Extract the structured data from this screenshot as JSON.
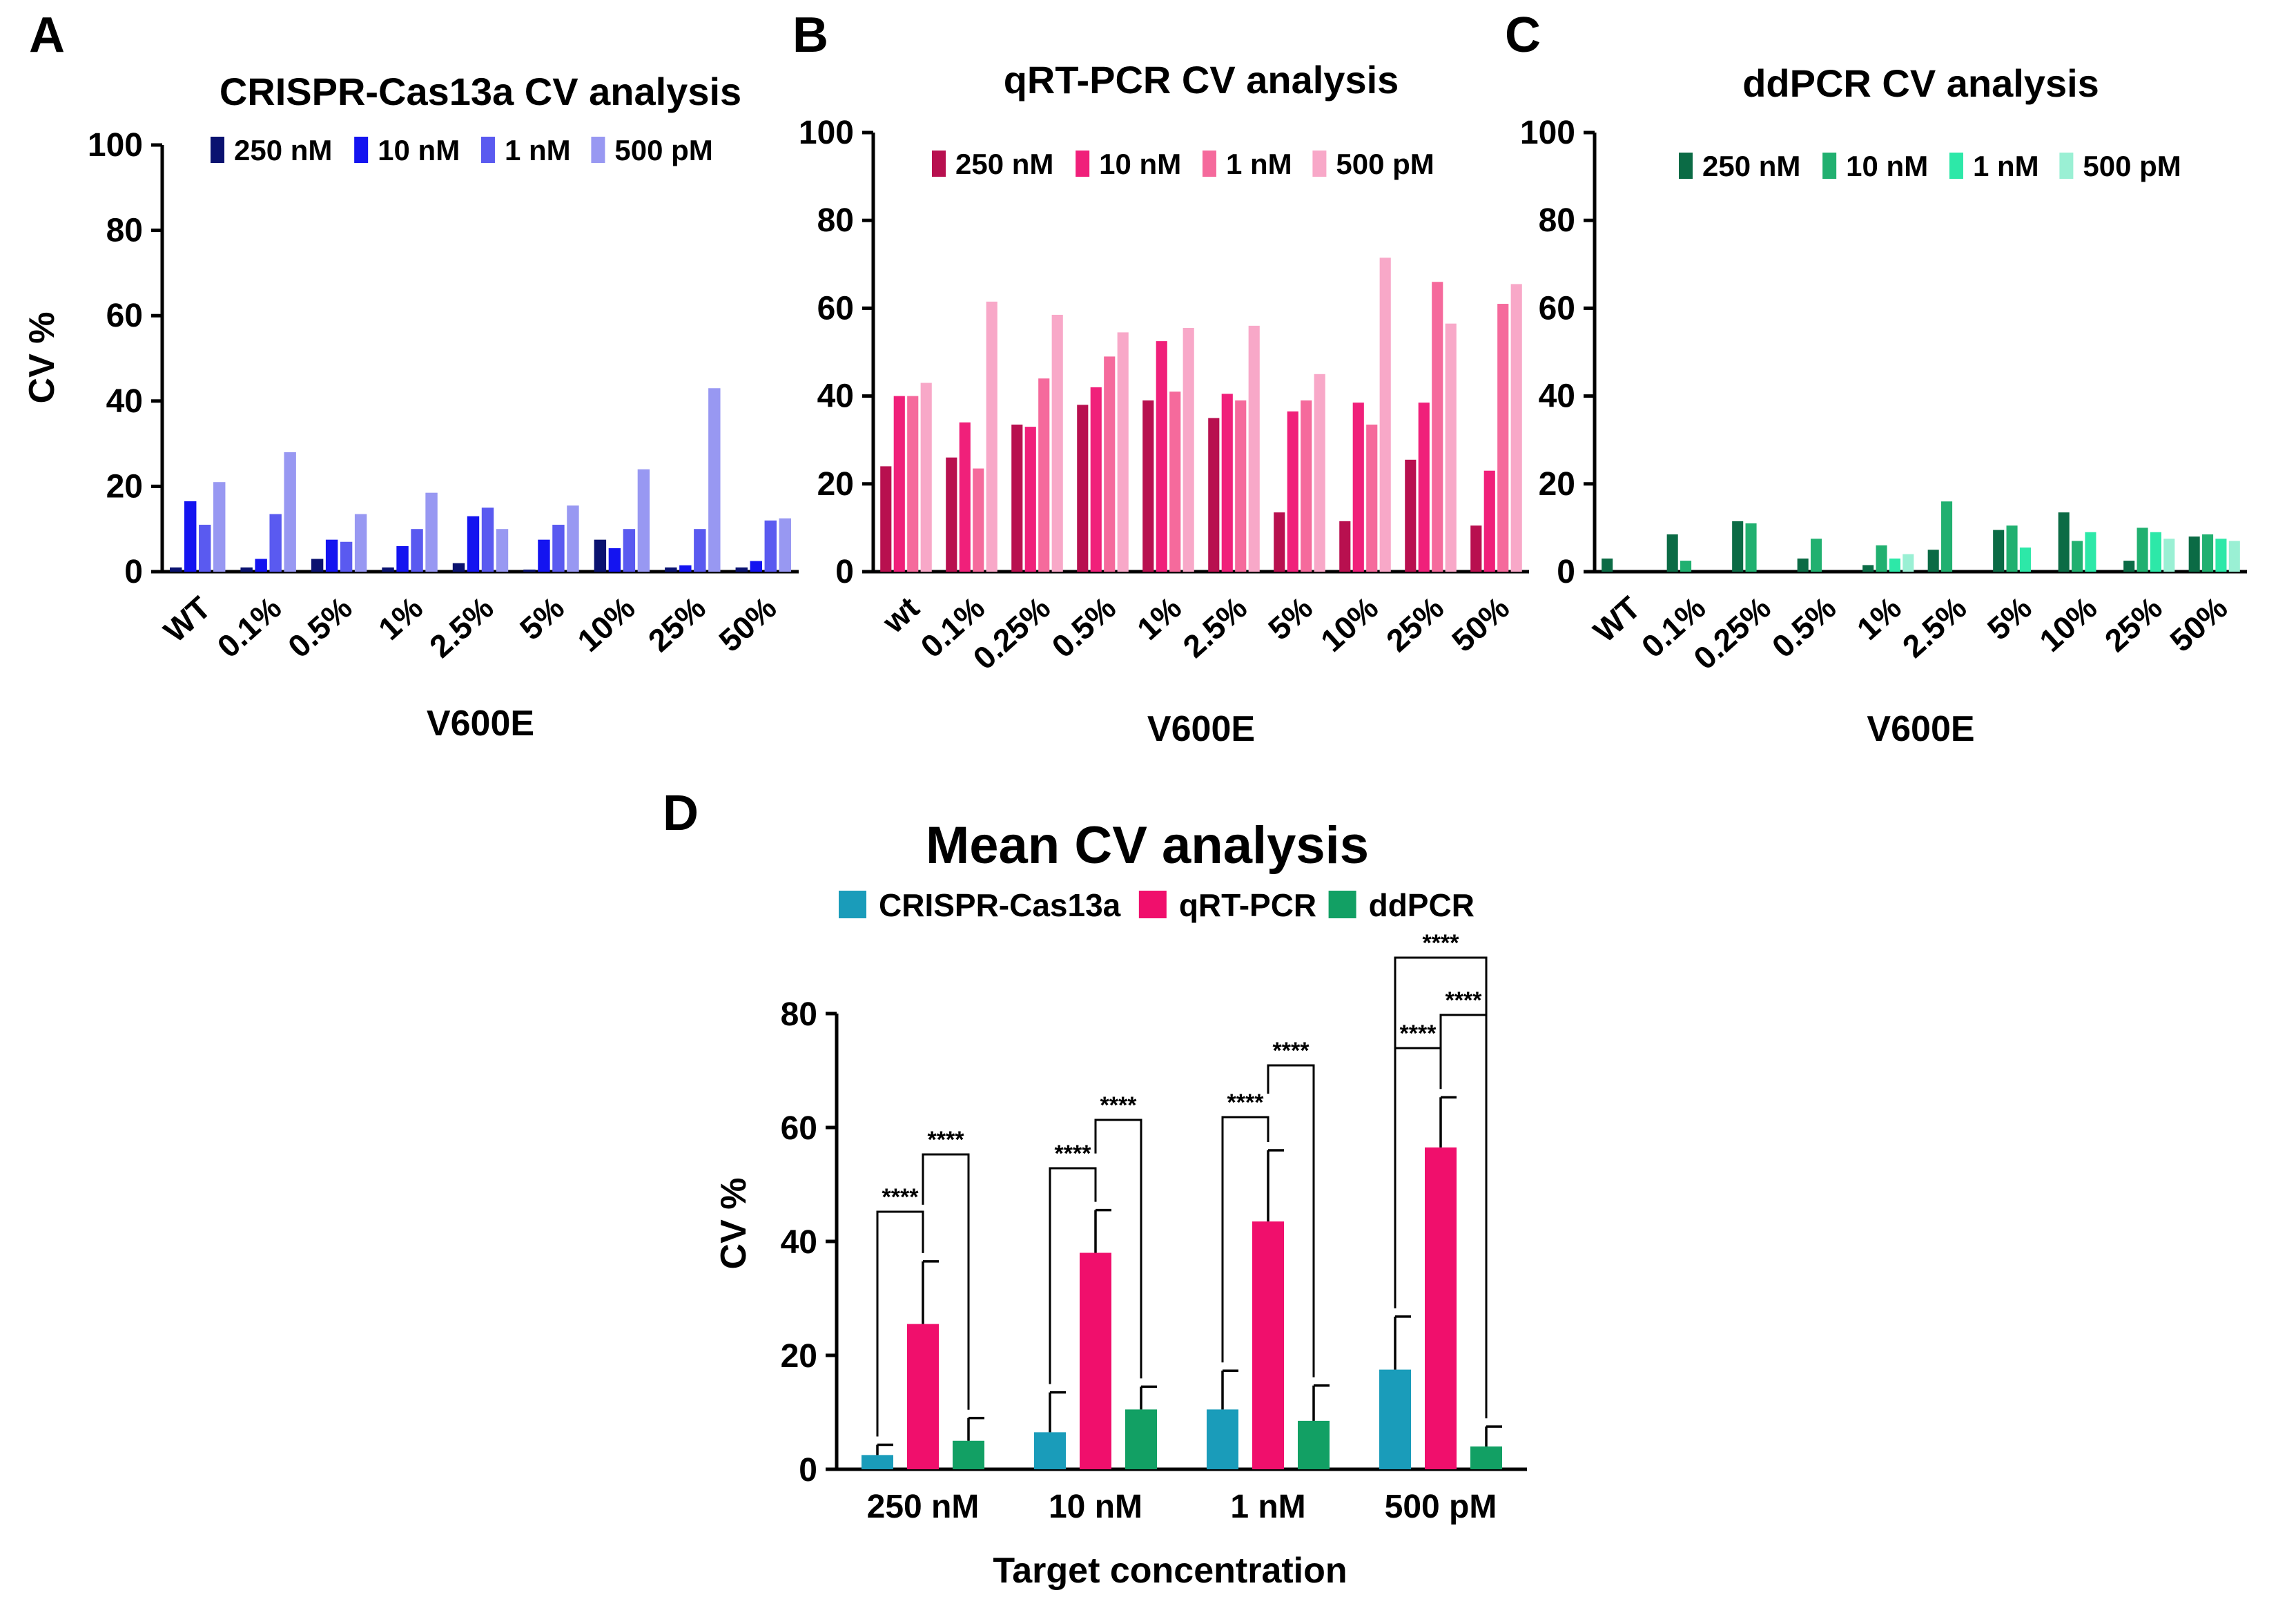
{
  "panels": [
    {
      "id": "A",
      "letter": "A",
      "title": "CRISPR-Cas13a CV analysis",
      "ylabel": "CV %",
      "xlabel": "V600E",
      "legend": [
        {
          "label": "250 nM",
          "color": "#0a1270"
        },
        {
          "label": "10 nM",
          "color": "#1414f0"
        },
        {
          "label": "1 nM",
          "color": "#5a5af0"
        },
        {
          "label": "500 pM",
          "color": "#9898f2"
        }
      ]
    },
    {
      "id": "B",
      "letter": "B",
      "title": "qRT-PCR CV analysis",
      "ylabel": "",
      "xlabel": "V600E",
      "legend": [
        {
          "label": "250 nM",
          "color": "#b8104f"
        },
        {
          "label": "10 nM",
          "color": "#f0207a"
        },
        {
          "label": "1 nM",
          "color": "#f56a9c"
        },
        {
          "label": "500 pM",
          "color": "#f8a8c8"
        }
      ]
    },
    {
      "id": "C",
      "letter": "C",
      "title": "ddPCR CV analysis",
      "ylabel": "",
      "xlabel": "V600E",
      "legend": [
        {
          "label": "250 nM",
          "color": "#0b6b45"
        },
        {
          "label": "10 nM",
          "color": "#21b070"
        },
        {
          "label": "1 nM",
          "color": "#2de8a8"
        },
        {
          "label": "500 pM",
          "color": "#9af0d4"
        }
      ]
    },
    {
      "id": "D",
      "letter": "D",
      "title": "Mean CV analysis",
      "ylabel": "CV %",
      "xlabel": "Target concentration",
      "legend": [
        {
          "label": "CRISPR-Cas13a",
          "color": "#1a9cba"
        },
        {
          "label": "qRT-PCR",
          "color": "#f00f6c"
        },
        {
          "label": "ddPCR",
          "color": "#12a064"
        }
      ],
      "significance": "****"
    }
  ],
  "chart_data": [
    {
      "type": "bar",
      "panel": "A",
      "title": "CRISPR-Cas13a CV analysis",
      "xlabel": "V600E",
      "ylabel": "CV %",
      "ylim": [
        0,
        100
      ],
      "yticks": [
        0,
        20,
        40,
        60,
        80,
        100
      ],
      "categories": [
        "WT",
        "0.1%",
        "0.5%",
        "1%",
        "2.5%",
        "5%",
        "10%",
        "25%",
        "50%"
      ],
      "series": [
        {
          "name": "250 nM",
          "values": [
            1,
            1,
            3,
            1,
            2,
            0.5,
            7.5,
            1,
            1
          ]
        },
        {
          "name": "10 nM",
          "values": [
            16.5,
            3,
            7.5,
            6,
            13,
            7.5,
            5.5,
            1.5,
            2.5
          ]
        },
        {
          "name": "1 nM",
          "values": [
            11,
            13.5,
            7,
            10,
            15,
            11,
            10,
            10,
            12
          ]
        },
        {
          "name": "500 pM",
          "values": [
            21,
            28,
            13.5,
            18.5,
            10,
            15.5,
            24,
            43,
            12.5
          ]
        }
      ]
    },
    {
      "type": "bar",
      "panel": "B",
      "title": "qRT-PCR CV analysis",
      "xlabel": "V600E",
      "ylabel": "",
      "ylim": [
        0,
        100
      ],
      "yticks": [
        0,
        20,
        40,
        60,
        80,
        100
      ],
      "categories": [
        "wt",
        "0.1%",
        "0.25%",
        "0.5%",
        "1%",
        "2.5%",
        "5%",
        "10%",
        "25%",
        "50%"
      ],
      "series": [
        {
          "name": "250 nM",
          "values": [
            24,
            26,
            33.5,
            38,
            39,
            35,
            13.5,
            11.5,
            25.5,
            10.5
          ]
        },
        {
          "name": "10 nM",
          "values": [
            40,
            34,
            33,
            42,
            52.5,
            40.5,
            36.5,
            38.5,
            38.5,
            23
          ]
        },
        {
          "name": "1 nM",
          "values": [
            40,
            23.5,
            44,
            49,
            41,
            39,
            39,
            33.5,
            66,
            61
          ]
        },
        {
          "name": "500 pM",
          "values": [
            43,
            61.5,
            58.5,
            54.5,
            55.5,
            56,
            45,
            71.5,
            56.5,
            65.5
          ]
        }
      ]
    },
    {
      "type": "bar",
      "panel": "C",
      "title": "ddPCR CV analysis",
      "xlabel": "V600E",
      "ylabel": "",
      "ylim": [
        0,
        100
      ],
      "yticks": [
        0,
        20,
        40,
        60,
        80,
        100
      ],
      "categories": [
        "WT",
        "0.1%",
        "0.25%",
        "0.5%",
        "1%",
        "2.5%",
        "5%",
        "10%",
        "25%",
        "50%"
      ],
      "series": [
        {
          "name": "250 nM",
          "values": [
            3,
            8.5,
            11.5,
            3,
            1.5,
            5,
            9.5,
            13.5,
            2.5,
            8
          ]
        },
        {
          "name": "10 nM",
          "values": [
            0,
            2.5,
            11,
            7.5,
            6,
            16,
            10.5,
            7,
            10,
            8.5
          ]
        },
        {
          "name": "1 nM",
          "values": [
            0,
            0,
            0,
            0,
            3,
            0,
            5.5,
            9,
            9,
            7.5
          ]
        },
        {
          "name": "500 pM",
          "values": [
            0,
            0,
            0,
            0,
            4,
            0,
            0,
            0,
            7.5,
            7
          ]
        }
      ]
    },
    {
      "type": "bar",
      "panel": "D",
      "title": "Mean CV analysis",
      "xlabel": "Target concentration",
      "ylabel": "CV %",
      "ylim": [
        0,
        80
      ],
      "yticks": [
        0,
        20,
        40,
        60,
        80
      ],
      "categories": [
        "250 nM",
        "10 nM",
        "1 nM",
        "500 pM"
      ],
      "series": [
        {
          "name": "CRISPR-Cas13a",
          "values": [
            2.5,
            6.5,
            10.5,
            17.5
          ],
          "error": [
            1.8,
            7,
            6.8,
            9.3
          ]
        },
        {
          "name": "qRT-PCR",
          "values": [
            25.5,
            38,
            43.5,
            56.5
          ],
          "error": [
            11,
            7.5,
            12.5,
            8.8
          ]
        },
        {
          "name": "ddPCR",
          "values": [
            5,
            10.5,
            8.5,
            4
          ],
          "error": [
            4,
            4,
            6.2,
            3.5
          ]
        }
      ],
      "annotations": "**** (CRISPR-Cas13a vs qRT-PCR; qRT-PCR vs ddPCR at each concentration; CRISPR-Cas13a vs ddPCR at 500 pM)"
    }
  ]
}
